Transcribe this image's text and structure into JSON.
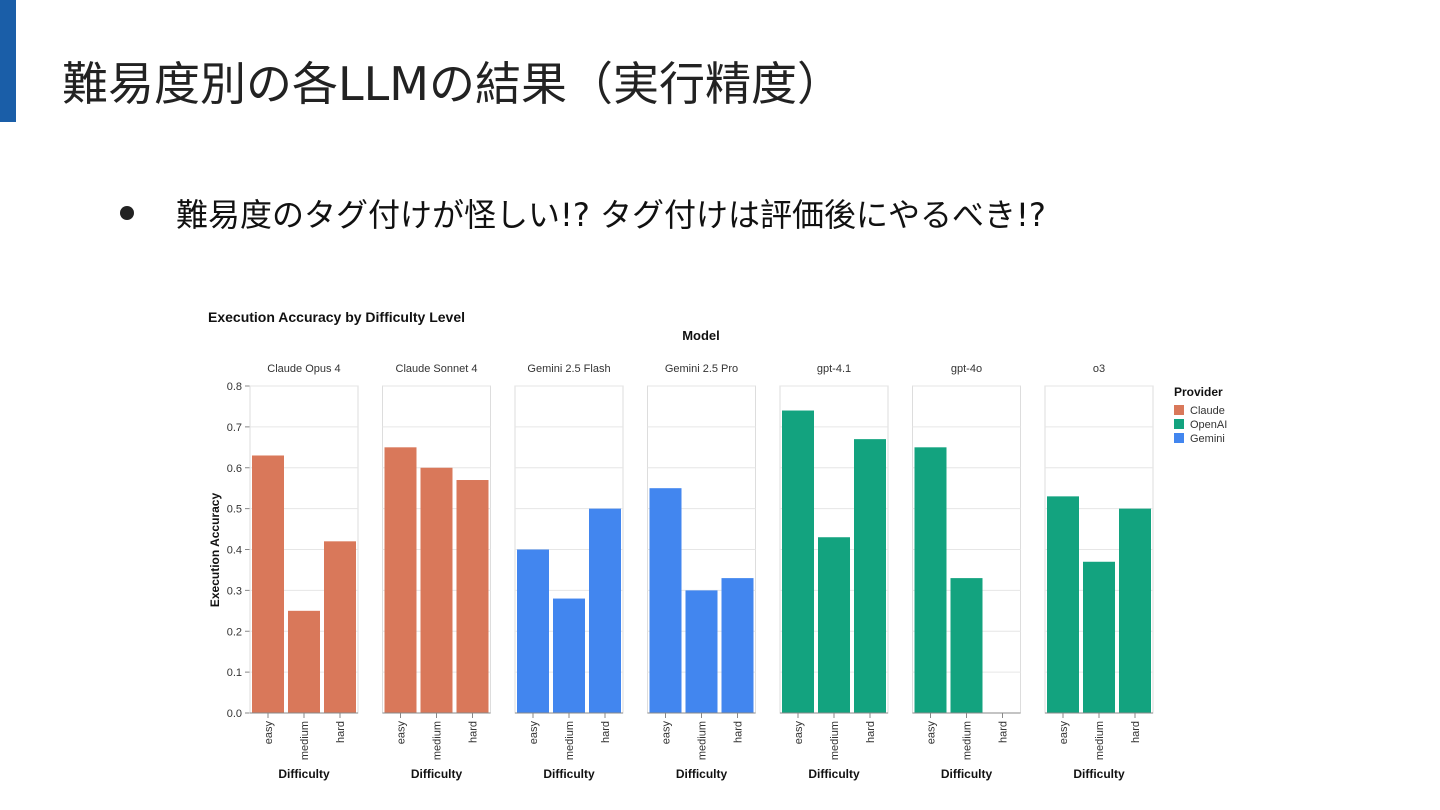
{
  "slide": {
    "title": "難易度別の各LLMの結果（実行精度）",
    "bullet": "難易度のタグ付けが怪しい!? タグ付けは評価後にやるべき!?"
  },
  "colors": {
    "accent": "#1a5ea8",
    "Claude": "#d9785a",
    "OpenAI": "#13a37f",
    "Gemini": "#4286ef"
  },
  "chart_data": {
    "type": "bar",
    "title": "Execution Accuracy by Difficulty Level",
    "facet_label": "Model",
    "xlabel": "Difficulty",
    "ylabel": "Execution Accuracy",
    "ylim": [
      0,
      0.8
    ],
    "y_ticks": [
      "0.0",
      "0.1",
      "0.2",
      "0.3",
      "0.4",
      "0.5",
      "0.6",
      "0.7",
      "0.8"
    ],
    "categories": [
      "easy",
      "medium",
      "hard"
    ],
    "legend": {
      "title": "Provider",
      "placement": "top-right",
      "items": [
        "Claude",
        "OpenAI",
        "Gemini"
      ]
    },
    "grid": true,
    "panels": [
      {
        "model": "Claude Opus 4",
        "provider": "Claude",
        "values": [
          0.63,
          0.25,
          0.42
        ]
      },
      {
        "model": "Claude Sonnet 4",
        "provider": "Claude",
        "values": [
          0.65,
          0.6,
          0.57
        ]
      },
      {
        "model": "Gemini 2.5 Flash",
        "provider": "Gemini",
        "values": [
          0.4,
          0.28,
          0.5
        ]
      },
      {
        "model": "Gemini 2.5 Pro",
        "provider": "Gemini",
        "values": [
          0.55,
          0.3,
          0.33
        ]
      },
      {
        "model": "gpt-4.1",
        "provider": "OpenAI",
        "values": [
          0.74,
          0.43,
          0.67
        ]
      },
      {
        "model": "gpt-4o",
        "provider": "OpenAI",
        "values": [
          0.65,
          0.33,
          0.0
        ]
      },
      {
        "model": "o3",
        "provider": "OpenAI",
        "values": [
          0.53,
          0.37,
          0.5
        ]
      }
    ]
  }
}
